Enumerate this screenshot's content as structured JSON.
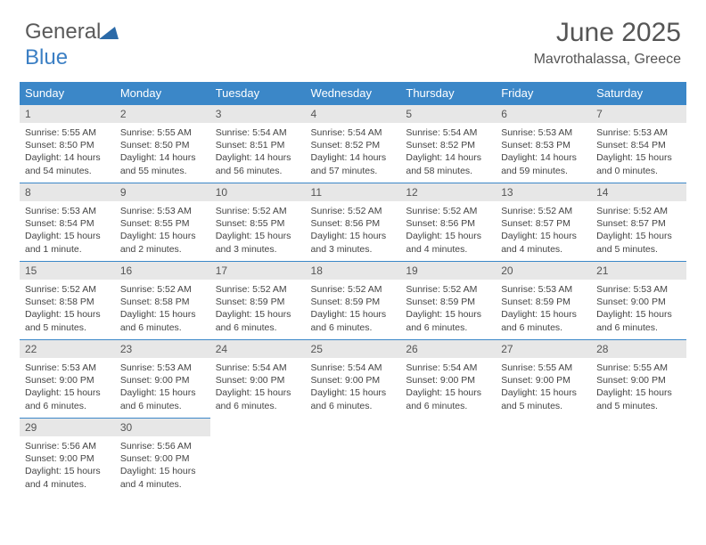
{
  "logo": {
    "text_general": "General",
    "text_blue": "Blue",
    "tri_color": "#2b6aa8"
  },
  "header": {
    "title": "June 2025",
    "location": "Mavrothalassa, Greece"
  },
  "calendar": {
    "type": "table",
    "header_bg": "#3b87c8",
    "header_fg": "#ffffff",
    "daynum_bg": "#e7e7e7",
    "rule_color": "#3b87c8",
    "body_fontsize": 10.5,
    "columns": [
      "Sunday",
      "Monday",
      "Tuesday",
      "Wednesday",
      "Thursday",
      "Friday",
      "Saturday"
    ],
    "days": [
      {
        "n": "1",
        "sunrise": "5:55 AM",
        "sunset": "8:50 PM",
        "daylight": "14 hours and 54 minutes."
      },
      {
        "n": "2",
        "sunrise": "5:55 AM",
        "sunset": "8:50 PM",
        "daylight": "14 hours and 55 minutes."
      },
      {
        "n": "3",
        "sunrise": "5:54 AM",
        "sunset": "8:51 PM",
        "daylight": "14 hours and 56 minutes."
      },
      {
        "n": "4",
        "sunrise": "5:54 AM",
        "sunset": "8:52 PM",
        "daylight": "14 hours and 57 minutes."
      },
      {
        "n": "5",
        "sunrise": "5:54 AM",
        "sunset": "8:52 PM",
        "daylight": "14 hours and 58 minutes."
      },
      {
        "n": "6",
        "sunrise": "5:53 AM",
        "sunset": "8:53 PM",
        "daylight": "14 hours and 59 minutes."
      },
      {
        "n": "7",
        "sunrise": "5:53 AM",
        "sunset": "8:54 PM",
        "daylight": "15 hours and 0 minutes."
      },
      {
        "n": "8",
        "sunrise": "5:53 AM",
        "sunset": "8:54 PM",
        "daylight": "15 hours and 1 minute."
      },
      {
        "n": "9",
        "sunrise": "5:53 AM",
        "sunset": "8:55 PM",
        "daylight": "15 hours and 2 minutes."
      },
      {
        "n": "10",
        "sunrise": "5:52 AM",
        "sunset": "8:55 PM",
        "daylight": "15 hours and 3 minutes."
      },
      {
        "n": "11",
        "sunrise": "5:52 AM",
        "sunset": "8:56 PM",
        "daylight": "15 hours and 3 minutes."
      },
      {
        "n": "12",
        "sunrise": "5:52 AM",
        "sunset": "8:56 PM",
        "daylight": "15 hours and 4 minutes."
      },
      {
        "n": "13",
        "sunrise": "5:52 AM",
        "sunset": "8:57 PM",
        "daylight": "15 hours and 4 minutes."
      },
      {
        "n": "14",
        "sunrise": "5:52 AM",
        "sunset": "8:57 PM",
        "daylight": "15 hours and 5 minutes."
      },
      {
        "n": "15",
        "sunrise": "5:52 AM",
        "sunset": "8:58 PM",
        "daylight": "15 hours and 5 minutes."
      },
      {
        "n": "16",
        "sunrise": "5:52 AM",
        "sunset": "8:58 PM",
        "daylight": "15 hours and 6 minutes."
      },
      {
        "n": "17",
        "sunrise": "5:52 AM",
        "sunset": "8:59 PM",
        "daylight": "15 hours and 6 minutes."
      },
      {
        "n": "18",
        "sunrise": "5:52 AM",
        "sunset": "8:59 PM",
        "daylight": "15 hours and 6 minutes."
      },
      {
        "n": "19",
        "sunrise": "5:52 AM",
        "sunset": "8:59 PM",
        "daylight": "15 hours and 6 minutes."
      },
      {
        "n": "20",
        "sunrise": "5:53 AM",
        "sunset": "8:59 PM",
        "daylight": "15 hours and 6 minutes."
      },
      {
        "n": "21",
        "sunrise": "5:53 AM",
        "sunset": "9:00 PM",
        "daylight": "15 hours and 6 minutes."
      },
      {
        "n": "22",
        "sunrise": "5:53 AM",
        "sunset": "9:00 PM",
        "daylight": "15 hours and 6 minutes."
      },
      {
        "n": "23",
        "sunrise": "5:53 AM",
        "sunset": "9:00 PM",
        "daylight": "15 hours and 6 minutes."
      },
      {
        "n": "24",
        "sunrise": "5:54 AM",
        "sunset": "9:00 PM",
        "daylight": "15 hours and 6 minutes."
      },
      {
        "n": "25",
        "sunrise": "5:54 AM",
        "sunset": "9:00 PM",
        "daylight": "15 hours and 6 minutes."
      },
      {
        "n": "26",
        "sunrise": "5:54 AM",
        "sunset": "9:00 PM",
        "daylight": "15 hours and 6 minutes."
      },
      {
        "n": "27",
        "sunrise": "5:55 AM",
        "sunset": "9:00 PM",
        "daylight": "15 hours and 5 minutes."
      },
      {
        "n": "28",
        "sunrise": "5:55 AM",
        "sunset": "9:00 PM",
        "daylight": "15 hours and 5 minutes."
      },
      {
        "n": "29",
        "sunrise": "5:56 AM",
        "sunset": "9:00 PM",
        "daylight": "15 hours and 4 minutes."
      },
      {
        "n": "30",
        "sunrise": "5:56 AM",
        "sunset": "9:00 PM",
        "daylight": "15 hours and 4 minutes."
      }
    ],
    "labels": {
      "sunrise": "Sunrise:",
      "sunset": "Sunset:",
      "daylight": "Daylight:"
    }
  }
}
